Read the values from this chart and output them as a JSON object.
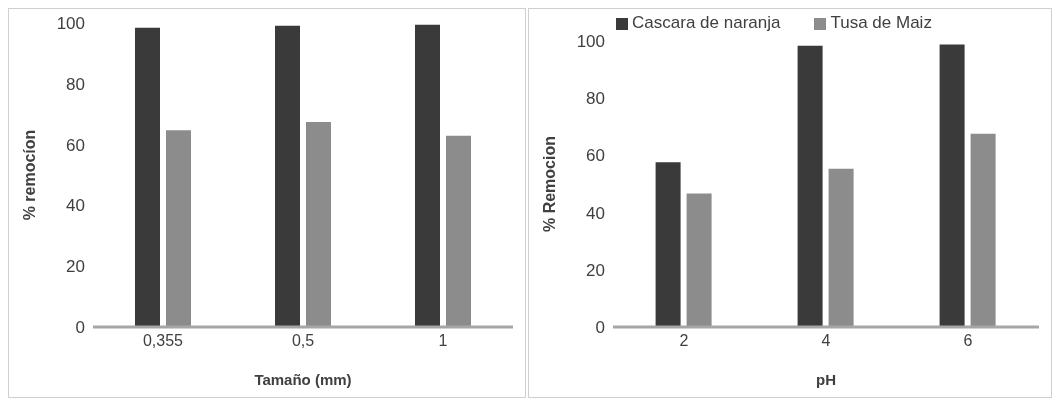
{
  "chart_data": [
    {
      "type": "bar",
      "xlabel": "Tamaño (mm)",
      "ylabel": "% remocíon",
      "categories": [
        "0,355",
        "0,5",
        "1"
      ],
      "series": [
        {
          "color": "#3a3a3a",
          "values": [
            98.4,
            99.1,
            99.4
          ]
        },
        {
          "color": "#8c8c8c",
          "values": [
            64.7,
            67.4,
            62.9
          ]
        }
      ],
      "ylim": [
        0,
        100
      ],
      "yticks": [
        0,
        20,
        40,
        60,
        80,
        100
      ],
      "grid": false,
      "legend": false
    },
    {
      "type": "bar",
      "xlabel": "pH",
      "ylabel": "% Remocion",
      "categories": [
        "2",
        "4",
        "6"
      ],
      "series": [
        {
          "name": "Cascara de naranja",
          "color": "#3a3a3a",
          "values": [
            57.6,
            98.3,
            98.8
          ]
        },
        {
          "name": "Tusa de Maiz",
          "color": "#8c8c8c",
          "values": [
            46.7,
            55.3,
            67.6
          ]
        }
      ],
      "ylim": [
        0,
        100
      ],
      "yticks": [
        0,
        20,
        40,
        60,
        80,
        100
      ],
      "grid": false,
      "legend": "top"
    }
  ]
}
